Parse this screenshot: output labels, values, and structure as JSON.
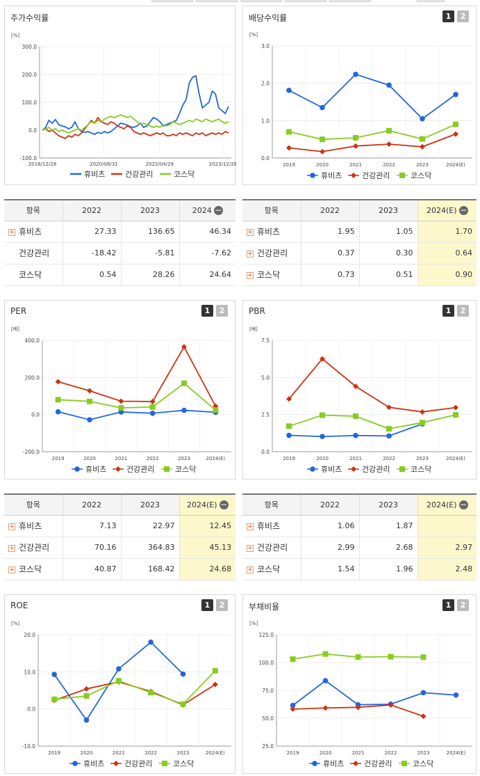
{
  "series_names": [
    "휴비츠",
    "건강관리",
    "코스닥"
  ],
  "colors": {
    "s0": "#2266dd",
    "s1": "#cc3311",
    "s2": "#88cc22"
  },
  "ui": {
    "page1": "1",
    "page2": "2",
    "minus": "−",
    "plus": "+"
  },
  "panels": {
    "p1": {
      "title": "주가수익률",
      "unit": "[%]"
    },
    "p2": {
      "title": "배당수익률",
      "unit": "[%]"
    },
    "p3": {
      "title": "PER",
      "unit": "[배]"
    },
    "p4": {
      "title": "PBR",
      "unit": "[배]"
    },
    "p5": {
      "title": "ROE",
      "unit": "[%]"
    },
    "p6": {
      "title": "부채비율",
      "unit": "[%]"
    }
  },
  "tables": {
    "t1": {
      "headers": [
        "항목",
        "2022",
        "2023",
        "2024"
      ],
      "rows": [
        {
          "name": "휴비츠",
          "v": [
            "27.33",
            "136.65",
            "46.34"
          ]
        },
        {
          "name": "건강관리",
          "v": [
            "-18.42",
            "-5.81",
            "-7.62"
          ]
        },
        {
          "name": "코스닥",
          "v": [
            "0.54",
            "28.26",
            "24.64"
          ]
        }
      ]
    },
    "t2": {
      "headers": [
        "항목",
        "2022",
        "2023",
        "2024(E)"
      ],
      "rows": [
        {
          "name": "휴비츠",
          "v": [
            "1.95",
            "1.05",
            "1.70"
          ]
        },
        {
          "name": "건강관리",
          "v": [
            "0.37",
            "0.30",
            "0.64"
          ]
        },
        {
          "name": "코스닥",
          "v": [
            "0.73",
            "0.51",
            "0.90"
          ]
        }
      ]
    },
    "t3": {
      "headers": [
        "항목",
        "2022",
        "2023",
        "2024(E)"
      ],
      "rows": [
        {
          "name": "휴비츠",
          "v": [
            "7.13",
            "22.97",
            "12.45"
          ]
        },
        {
          "name": "건강관리",
          "v": [
            "70.16",
            "364.83",
            "45.13"
          ]
        },
        {
          "name": "코스닥",
          "v": [
            "40.87",
            "168.42",
            "24.68"
          ]
        }
      ]
    },
    "t4": {
      "headers": [
        "항목",
        "2022",
        "2023",
        "2024(E)"
      ],
      "rows": [
        {
          "name": "휴비츠",
          "v": [
            "1.06",
            "1.87",
            ""
          ]
        },
        {
          "name": "건강관리",
          "v": [
            "2.99",
            "2.68",
            "2.97"
          ]
        },
        {
          "name": "코스닥",
          "v": [
            "1.54",
            "1.96",
            "2.48"
          ]
        }
      ]
    }
  },
  "chart_data": [
    {
      "type": "line",
      "title": "주가수익률",
      "ylabel": "[%]",
      "ylim": [
        -100,
        300
      ],
      "yticks": [
        "-100.0",
        "0.0",
        "100.0",
        "200.0",
        "300.0"
      ],
      "xticks": [
        "2018/12/28",
        "2020/08/31",
        "2022/04/29",
        "2023/12/28"
      ],
      "series": [
        {
          "name": "휴비츠",
          "values": [
            0,
            10,
            35,
            25,
            38,
            20,
            15,
            12,
            5,
            10,
            30,
            5,
            -5,
            -8,
            -5,
            -10,
            -15,
            -8,
            -12,
            -5,
            -10,
            -5,
            5,
            15,
            25,
            22,
            18,
            12,
            10,
            15,
            25,
            10,
            15,
            30,
            45,
            40,
            30,
            15,
            20,
            25,
            30,
            35,
            60,
            90,
            110,
            170,
            190,
            195,
            130,
            80,
            90,
            100,
            140,
            130,
            80,
            70,
            60,
            85
          ]
        },
        {
          "name": "건강관리",
          "values": [
            0,
            5,
            -5,
            0,
            -10,
            -20,
            -25,
            -30,
            -20,
            -25,
            -15,
            -20,
            -10,
            5,
            20,
            35,
            25,
            45,
            30,
            25,
            20,
            30,
            25,
            15,
            10,
            5,
            15,
            10,
            -5,
            -10,
            -15,
            -10,
            -15,
            -20,
            -15,
            -10,
            -15,
            -10,
            -20,
            -20,
            -15,
            -20,
            -10,
            -15,
            -10,
            -15,
            -20,
            -10,
            -15,
            -10,
            -20,
            -15,
            -10,
            -15,
            -10,
            -15,
            -5,
            -10
          ]
        },
        {
          "name": "코스닥",
          "values": [
            0,
            5,
            10,
            0,
            5,
            -5,
            0,
            -5,
            -10,
            -5,
            0,
            5,
            0,
            10,
            20,
            30,
            25,
            35,
            30,
            40,
            45,
            50,
            45,
            50,
            55,
            50,
            45,
            50,
            40,
            30,
            20,
            25,
            20,
            15,
            10,
            15,
            10,
            20,
            15,
            20,
            30,
            25,
            20,
            25,
            30,
            35,
            30,
            40,
            35,
            30,
            40,
            35,
            30,
            35,
            40,
            30,
            25,
            30
          ]
        }
      ]
    },
    {
      "type": "line",
      "title": "배당수익률",
      "ylabel": "[%]",
      "ylim": [
        0,
        3
      ],
      "yticks": [
        "0.0",
        "1.0",
        "2.0",
        "3.0"
      ],
      "categories": [
        "2019",
        "2020",
        "2021",
        "2022",
        "2023",
        "2024(E)"
      ],
      "series": [
        {
          "name": "휴비츠",
          "values": [
            1.81,
            1.35,
            2.24,
            1.95,
            1.05,
            1.7
          ]
        },
        {
          "name": "건강관리",
          "values": [
            0.27,
            0.17,
            0.32,
            0.37,
            0.3,
            0.64
          ]
        },
        {
          "name": "코스닥",
          "values": [
            0.7,
            0.5,
            0.54,
            0.73,
            0.51,
            0.9
          ]
        }
      ]
    },
    {
      "type": "line",
      "title": "PER",
      "ylabel": "[배]",
      "ylim": [
        -200,
        400
      ],
      "yticks": [
        "-200.0",
        "0.0",
        "200.0",
        "400.0"
      ],
      "categories": [
        "2019",
        "2020",
        "2021",
        "2022",
        "2023",
        "2024(E)"
      ],
      "series": [
        {
          "name": "휴비츠",
          "values": [
            15,
            -28,
            14,
            7.13,
            22.97,
            12.45
          ]
        },
        {
          "name": "건강관리",
          "values": [
            177,
            128,
            72,
            70.16,
            364.83,
            45.13
          ]
        },
        {
          "name": "코스닥",
          "values": [
            80,
            71,
            36,
            40.87,
            168.42,
            24.68
          ]
        }
      ]
    },
    {
      "type": "line",
      "title": "PBR",
      "ylabel": "[배]",
      "ylim": [
        0,
        7.5
      ],
      "yticks": [
        "0.0",
        "2.5",
        "5.0",
        "7.5"
      ],
      "categories": [
        "2019",
        "2020",
        "2021",
        "2022",
        "2023",
        "2024(E)"
      ],
      "series": [
        {
          "name": "휴비츠",
          "values": [
            1.1,
            1.02,
            1.09,
            1.06,
            1.87,
            null
          ]
        },
        {
          "name": "건강관리",
          "values": [
            3.55,
            6.25,
            4.4,
            2.99,
            2.68,
            2.97
          ]
        },
        {
          "name": "코스닥",
          "values": [
            1.72,
            2.46,
            2.39,
            1.54,
            1.96,
            2.48
          ]
        }
      ]
    },
    {
      "type": "line",
      "title": "ROE",
      "ylabel": "[%]",
      "ylim": [
        -10,
        20
      ],
      "yticks": [
        "-10.0",
        "0.0",
        "10.0",
        "20.0"
      ],
      "categories": [
        "2019",
        "2020",
        "2021",
        "2022",
        "2023",
        "2024(E)"
      ],
      "series": [
        {
          "name": "휴비츠",
          "values": [
            9.3,
            -3.0,
            10.8,
            18.0,
            9.4,
            null
          ]
        },
        {
          "name": "건강관리",
          "values": [
            2.3,
            5.4,
            7.3,
            4.7,
            1.1,
            6.6
          ]
        },
        {
          "name": "코스닥",
          "values": [
            2.6,
            3.5,
            7.6,
            4.4,
            1.3,
            10.3
          ]
        }
      ]
    },
    {
      "type": "line",
      "title": "부채비율",
      "ylabel": "[%]",
      "ylim": [
        25,
        125
      ],
      "yticks": [
        "25.0",
        "50.0",
        "75.0",
        "100.0",
        "125.0"
      ],
      "categories": [
        "2019",
        "2020",
        "2021",
        "2022",
        "2023",
        "2024(E)"
      ],
      "series": [
        {
          "name": "휴비츠",
          "values": [
            61.5,
            83.7,
            62.1,
            62.6,
            72.9,
            70.8
          ]
        },
        {
          "name": "건강관리",
          "values": [
            58.2,
            59.2,
            59.8,
            61.9,
            51.8,
            null
          ]
        },
        {
          "name": "코스닥",
          "values": [
            103.1,
            107.7,
            104.9,
            105.3,
            104.8,
            null
          ]
        }
      ]
    }
  ]
}
